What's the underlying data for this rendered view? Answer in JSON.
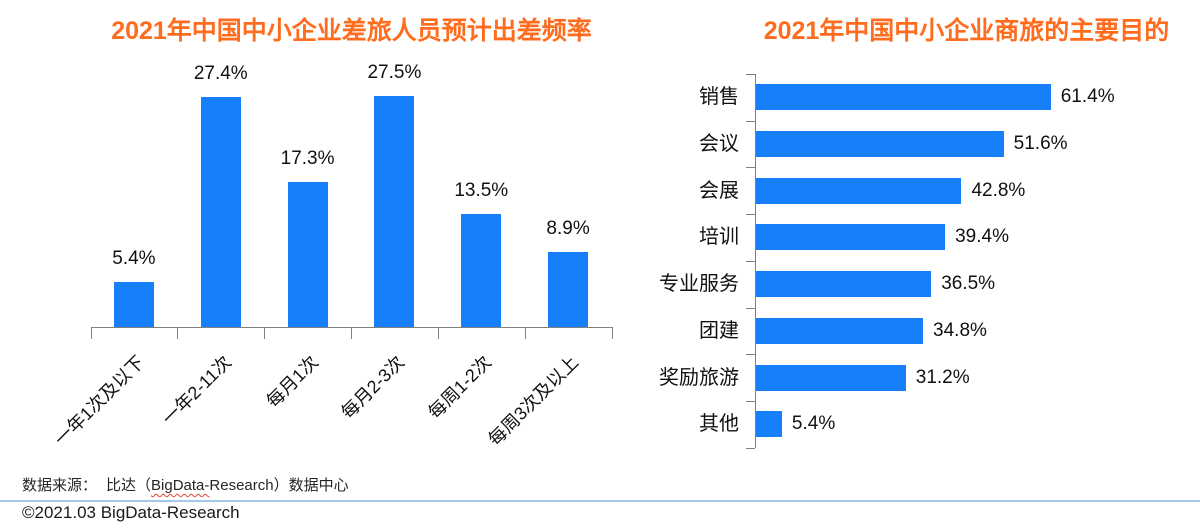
{
  "colors": {
    "bar_blue": "#187FFB",
    "title_orange": "#FF6C1E",
    "axis_gray": "#7F7F7F",
    "divider_blue": "#A5C8EA"
  },
  "chart_data": [
    {
      "id": "travel-frequency",
      "type": "bar",
      "orientation": "vertical",
      "title": "2021年中国中小企业差旅人员预计出差频率",
      "categories": [
        "一年1次及以下",
        "一年2-11次",
        "每月1次",
        "每月2-3次",
        "每周1-2次",
        "每周3次及以上"
      ],
      "values": [
        5.4,
        27.4,
        17.3,
        27.5,
        13.5,
        8.9
      ],
      "data_labels": [
        "5.4%",
        "27.4%",
        "17.3%",
        "27.5%",
        "13.5%",
        "8.9%"
      ],
      "xlabel": "",
      "ylabel": "",
      "ylim": [
        0,
        30
      ],
      "grid": false,
      "legend": "none",
      "bar_color": "#187FFB"
    },
    {
      "id": "travel-purpose",
      "type": "bar",
      "orientation": "horizontal",
      "title": "2021年中国中小企业商旅的主要目的",
      "categories": [
        "销售",
        "会议",
        "会展",
        "培训",
        "专业服务",
        "团建",
        "奖励旅游",
        "其他"
      ],
      "values": [
        61.4,
        51.6,
        42.8,
        39.4,
        36.5,
        34.8,
        31.2,
        5.4
      ],
      "data_labels": [
        "61.4%",
        "51.6%",
        "42.8%",
        "39.4%",
        "36.5%",
        "34.8%",
        "31.2%",
        "5.4%"
      ],
      "xlabel": "",
      "ylabel": "",
      "xlim": [
        0,
        70
      ],
      "grid": false,
      "legend": "none",
      "bar_color": "#187FFB"
    }
  ],
  "footer": {
    "source_prefix": "数据来源：",
    "source_name_pre": "比达（",
    "source_name_mark": "BigData-",
    "source_name_post": "Research）数据中心",
    "copyright": "©2021.03 BigData-Research"
  }
}
